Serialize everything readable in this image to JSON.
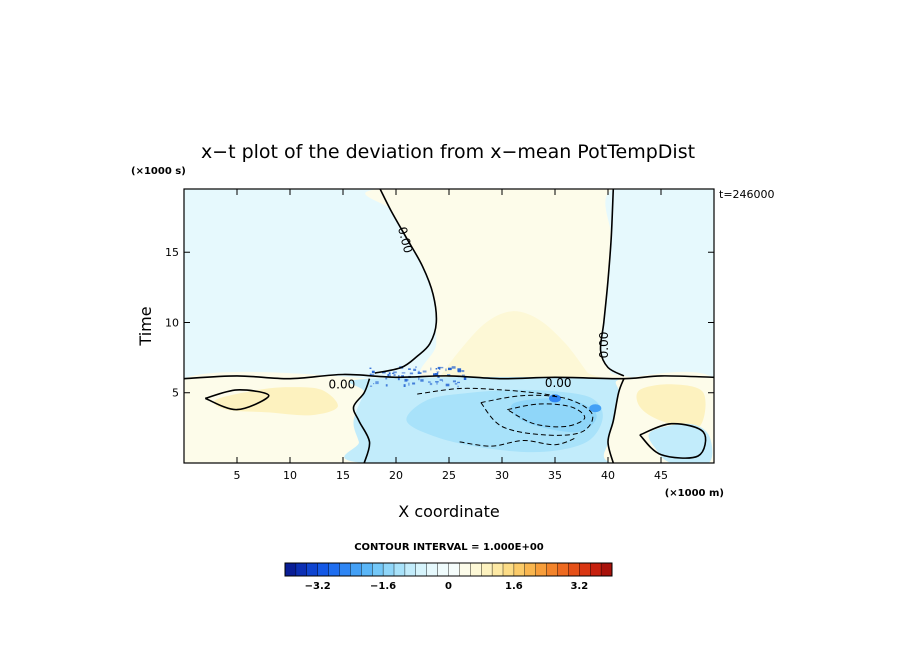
{
  "chart_data": {
    "type": "heatmap",
    "title": "x−t plot of the deviation from x−mean PotTempDist",
    "xlabel": "X coordinate",
    "ylabel": "Time",
    "x_unit": "(×1000 m)",
    "y_unit": "(×1000 s)",
    "annotation_top_right": "t=246000",
    "xlim": [
      0,
      50
    ],
    "ylim": [
      0,
      19.5
    ],
    "x_ticks": [
      5,
      10,
      15,
      20,
      25,
      30,
      35,
      40,
      45
    ],
    "y_ticks": [
      5,
      10,
      15
    ],
    "contour_interval_text": "CONTOUR INTERVAL = 1.000E+00",
    "contour_labels": [
      {
        "text": "0.00",
        "x": 20.5,
        "y": 15.8,
        "rotate": 75
      },
      {
        "text": "0.00",
        "x": 40.0,
        "y": 8.4,
        "rotate": -90
      },
      {
        "text": "0.00",
        "x": 14.9,
        "y": 5.3,
        "rotate": 0
      },
      {
        "text": "0.00",
        "x": 35.3,
        "y": 5.4,
        "rotate": 0
      }
    ],
    "colorbar": {
      "min": -4.0,
      "max": 4.0,
      "tick_values": [
        -3.2,
        -1.6,
        0,
        1.6,
        3.2
      ],
      "tick_labels": [
        "−3.2",
        "−1.6",
        "0",
        "1.6",
        "3.2"
      ],
      "colors": [
        "#0a1e96",
        "#0c2fb4",
        "#0f44d0",
        "#1458e6",
        "#1f6ef0",
        "#2f86f4",
        "#43a0f6",
        "#5ab6f7",
        "#74c8f8",
        "#8fd6f9",
        "#a8e2fa",
        "#c2ecfb",
        "#d6f4fc",
        "#e6f9fd",
        "#f0fcfd",
        "#f6fdfc",
        "#fdfcea",
        "#fdf8d6",
        "#fdf2bf",
        "#fde9a4",
        "#fcdc86",
        "#fbcb69",
        "#f9b64f",
        "#f79e3b",
        "#f3842b",
        "#ee6a20",
        "#e55018",
        "#d93612",
        "#c6200e",
        "#a8120b"
      ]
    },
    "regions": [
      {
        "name": "upper-west-negative",
        "color": "#e6f9fd",
        "x": [
          0,
          18.5,
          19.5,
          21.0,
          22.5,
          23.5,
          23.8,
          23.2,
          22.0,
          20.5,
          0
        ],
        "y": [
          19.5,
          19.5,
          18.0,
          16.0,
          14.0,
          12.0,
          10.0,
          8.5,
          7.6,
          6.8,
          6.8
        ]
      },
      {
        "name": "upper-central-positive",
        "color": "#fdfcea",
        "x": [
          18.5,
          40.5,
          40.3,
          40.0,
          39.6,
          39.3,
          40.0,
          41.5,
          23.5,
          23.8,
          23.5,
          22.5,
          21.0,
          19.5
        ],
        "y": [
          19.5,
          19.5,
          16.0,
          13.0,
          10.0,
          8.0,
          6.8,
          5.8,
          5.8,
          8.5,
          12.0,
          14.0,
          16.0,
          18.0
        ]
      },
      {
        "name": "upper-east-negative",
        "color": "#e6f9fd",
        "x": [
          40.5,
          50,
          50,
          41.5,
          40.0,
          39.3,
          39.6,
          40.0,
          40.3
        ],
        "y": [
          19.5,
          19.5,
          6.2,
          6.2,
          6.8,
          8.0,
          10.0,
          13.0,
          16.0
        ]
      },
      {
        "name": "warm-dome",
        "color": "#fdf8d6",
        "x": [
          24.0,
          26.0,
          28.5,
          31.0,
          33.5,
          36.0,
          38.0,
          38.5,
          24.0
        ],
        "y": [
          6.0,
          8.0,
          10.0,
          10.8,
          10.2,
          8.5,
          6.5,
          6.0,
          6.0
        ]
      },
      {
        "name": "lower-west-positive",
        "color": "#fdfcea",
        "x": [
          0,
          17.5,
          17.0,
          16.0,
          16.5,
          17.5,
          17.0,
          15.0,
          10.0,
          5.0,
          0
        ],
        "y": [
          6.0,
          6.0,
          5.0,
          4.0,
          3.0,
          1.5,
          0,
          0,
          0,
          0,
          0
        ]
      },
      {
        "name": "lower-west-tan",
        "color": "#fdf2bf",
        "x": [
          3.0,
          7.0,
          10.0,
          13.0,
          14.5,
          12.0,
          8.0,
          4.0
        ],
        "y": [
          4.5,
          5.2,
          5.4,
          5.2,
          4.0,
          3.4,
          3.6,
          3.8
        ]
      },
      {
        "name": "lower-central-negative",
        "color": "#c2ecfb",
        "x": [
          17.5,
          41.5,
          41.0,
          40.5,
          40.0,
          40.5,
          17.0,
          16.5,
          16.0,
          17.0
        ],
        "y": [
          6.0,
          6.0,
          5.0,
          3.0,
          1.5,
          0,
          0,
          1.5,
          3.0,
          5.0
        ]
      },
      {
        "name": "lower-central-deeper",
        "color": "#a8e2fa",
        "x": [
          23.0,
          27.0,
          31.0,
          35.0,
          38.5,
          39.5,
          38.0,
          34.0,
          29.0,
          24.0,
          21.0
        ],
        "y": [
          4.5,
          5.0,
          5.2,
          5.1,
          4.6,
          3.2,
          1.5,
          0.8,
          1.0,
          1.8,
          3.0
        ]
      },
      {
        "name": "lower-central-core",
        "color": "#8fd6f9",
        "x": [
          31.0,
          34.0,
          37.0,
          38.8,
          38.6,
          37.0,
          34.0,
          31.5
        ],
        "y": [
          4.2,
          4.6,
          4.4,
          3.6,
          2.8,
          2.2,
          2.5,
          3.2
        ]
      },
      {
        "name": "lower-east-positive",
        "color": "#fdfcea",
        "x": [
          41.5,
          50,
          50,
          40.5,
          40.0,
          40.5,
          41.0
        ],
        "y": [
          6.0,
          6.0,
          0,
          0,
          1.5,
          3.0,
          5.0
        ]
      },
      {
        "name": "lower-east-tan",
        "color": "#fdf2bf",
        "x": [
          43.0,
          46.0,
          49.0,
          48.5,
          45.0,
          43.0
        ],
        "y": [
          5.2,
          5.6,
          5.0,
          2.5,
          3.0,
          4.0
        ]
      },
      {
        "name": "lower-east-negative-patch",
        "color": "#c2ecfb",
        "x": [
          44.0,
          47.5,
          49.5,
          49.5,
          46.0,
          44.5
        ],
        "y": [
          2.2,
          2.8,
          2.0,
          0,
          0,
          1.0
        ]
      }
    ],
    "contours_zero": [
      {
        "x": [
          18.5,
          19.5,
          21.0,
          22.5,
          23.5,
          23.8,
          23.2,
          22.0,
          20.5,
          18.0
        ],
        "y": [
          19.5,
          18.0,
          16.0,
          14.0,
          12.0,
          10.0,
          8.5,
          7.6,
          6.8,
          6.4
        ]
      },
      {
        "x": [
          40.5,
          40.3,
          40.0,
          39.6,
          39.3,
          40.0,
          41.5
        ],
        "y": [
          19.5,
          16.0,
          13.0,
          10.0,
          8.0,
          6.8,
          6.2
        ]
      },
      {
        "x": [
          0,
          5.0,
          10.0,
          15.0,
          20.0,
          25.0,
          30.0,
          35.0,
          41.5,
          45.0,
          50.0
        ],
        "y": [
          6.0,
          6.2,
          6.0,
          6.3,
          6.1,
          6.2,
          6.0,
          6.1,
          6.0,
          6.2,
          6.1
        ]
      },
      {
        "x": [
          17.5,
          17.0,
          16.0,
          16.5,
          17.5,
          17.0
        ],
        "y": [
          6.0,
          5.0,
          4.0,
          3.0,
          1.5,
          0
        ]
      },
      {
        "x": [
          41.5,
          41.0,
          40.5,
          40.0,
          40.5
        ],
        "y": [
          6.0,
          5.0,
          3.0,
          1.5,
          0
        ]
      },
      {
        "x": [
          2.0,
          5.0,
          8.0,
          5.0,
          2.0
        ],
        "y": [
          4.6,
          5.2,
          4.8,
          3.8,
          4.6
        ]
      },
      {
        "x": [
          43.0,
          46.0,
          49.0,
          48.5,
          45.0,
          43.0
        ],
        "y": [
          2.0,
          2.8,
          2.2,
          0.5,
          0.6,
          2.0
        ]
      }
    ],
    "contours_negative": [
      {
        "x": [
          28.0,
          32.0,
          36.0,
          38.5,
          37.5,
          34.0,
          30.0,
          28.0
        ],
        "y": [
          4.3,
          4.8,
          4.6,
          3.5,
          2.2,
          2.0,
          2.6,
          4.3
        ]
      },
      {
        "x": [
          30.5,
          33.5,
          36.5,
          37.8,
          36.0,
          33.0,
          30.5
        ],
        "y": [
          3.8,
          4.2,
          4.0,
          3.2,
          2.6,
          2.8,
          3.8
        ]
      },
      {
        "x": [
          22.0,
          26.0,
          30.0,
          33.0,
          35.0
        ],
        "y": [
          4.9,
          5.3,
          5.2,
          5.0,
          4.8
        ]
      },
      {
        "x": [
          26.0,
          29.0,
          32.0,
          35.0,
          37.0
        ],
        "y": [
          1.5,
          1.2,
          1.6,
          1.3,
          1.8
        ]
      }
    ],
    "noise_band": {
      "x_range": [
        17.5,
        26.5
      ],
      "y_range": [
        5.5,
        6.9
      ],
      "color": "#1f5fd0"
    },
    "deep_spots": [
      {
        "x": 35.0,
        "y": 4.6,
        "color": "#2f86f4"
      },
      {
        "x": 38.8,
        "y": 3.9,
        "color": "#43a0f6"
      }
    ]
  }
}
